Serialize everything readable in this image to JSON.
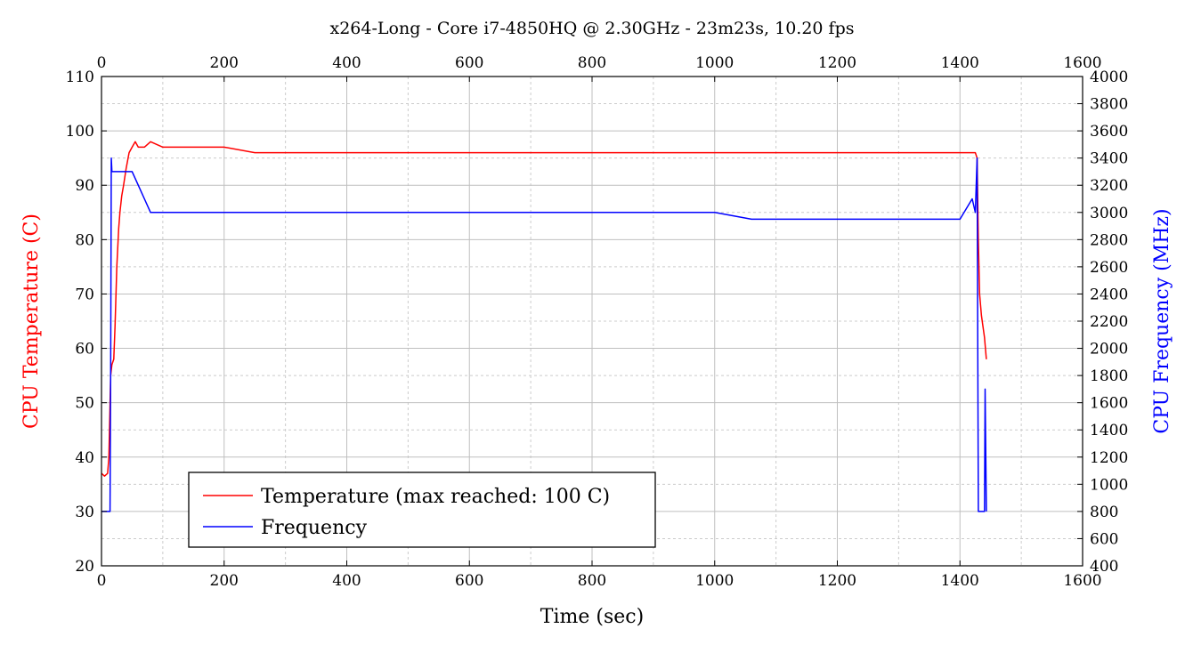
{
  "chart_data": {
    "type": "line",
    "title": "x264-Long - Core i7-4850HQ @ 2.30GHz - 23m23s, 10.20 fps",
    "xlabel": "Time (sec)",
    "ylabel": "CPU Temperature (C)",
    "y2label": "CPU Frequency (MHz)",
    "xlim": [
      0,
      1600
    ],
    "ylim": [
      20,
      110
    ],
    "y2lim": [
      400,
      4000
    ],
    "x_ticks": [
      "0",
      "200",
      "400",
      "600",
      "800",
      "1000",
      "1200",
      "1400",
      "1600"
    ],
    "y_ticks": [
      "20",
      "30",
      "40",
      "50",
      "60",
      "70",
      "80",
      "90",
      "100",
      "110"
    ],
    "y2_ticks": [
      "400",
      "600",
      "800",
      "1000",
      "1200",
      "1400",
      "1600",
      "1800",
      "2000",
      "2200",
      "2400",
      "2600",
      "2800",
      "3000",
      "3200",
      "3400",
      "3600",
      "3800",
      "4000"
    ],
    "grid": true,
    "minor_grid": true,
    "legend_position": "bottom-left",
    "colors": {
      "temperature": "#ff0000",
      "frequency": "#0000ff",
      "grid_major": "#bfbfbf",
      "grid_minor": "#cccccc"
    },
    "series": [
      {
        "name": "Temperature (max reached: 100 C)",
        "axis": "left",
        "x": [
          0,
          5,
          10,
          12,
          15,
          17,
          20,
          22,
          25,
          28,
          30,
          33,
          36,
          40,
          45,
          50,
          55,
          60,
          70,
          80,
          100,
          150,
          200,
          250,
          300,
          350,
          400,
          450,
          500,
          550,
          600,
          650,
          700,
          750,
          800,
          850,
          900,
          950,
          1000,
          1050,
          1100,
          1150,
          1200,
          1250,
          1300,
          1350,
          1400,
          1410,
          1420,
          1425,
          1428,
          1430,
          1432,
          1435,
          1440,
          1443
        ],
        "y": [
          37,
          36.5,
          37,
          40,
          55,
          57,
          58,
          64,
          75,
          82,
          85,
          88,
          90,
          93,
          96,
          97,
          98,
          97,
          97,
          98,
          97,
          97,
          97,
          96,
          96,
          96,
          96,
          96,
          96,
          96,
          96,
          96,
          96,
          96,
          96,
          96,
          96,
          96,
          96,
          96,
          96,
          96,
          96,
          96,
          96,
          96,
          96,
          96,
          96,
          96,
          95,
          80,
          70,
          66,
          62,
          58
        ]
      },
      {
        "name": "Frequency",
        "axis": "right",
        "x": [
          0,
          14,
          15,
          16,
          17,
          18,
          20,
          25,
          30,
          50,
          60,
          70,
          80,
          200,
          400,
          600,
          800,
          1000,
          1060,
          1400,
          1420,
          1425,
          1428,
          1430,
          1440,
          1441,
          1443
        ],
        "y": [
          800,
          800,
          1800,
          3400,
          3300,
          3300,
          3300,
          3300,
          3300,
          3300,
          3200,
          3100,
          3000,
          3000,
          3000,
          3000,
          3000,
          3000,
          2950,
          2950,
          3100,
          3000,
          3400,
          800,
          800,
          1700,
          800
        ]
      }
    ]
  }
}
